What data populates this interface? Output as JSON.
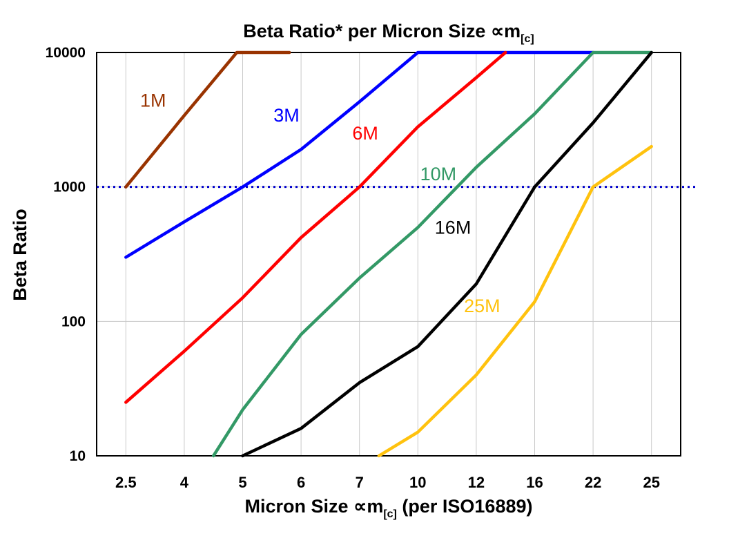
{
  "chart_data": {
    "type": "line",
    "title": {
      "text": "Beta Ratio* per Micron Size ∝m",
      "sub": "[c]"
    },
    "xlabel": {
      "text": "Micron Size ∝m",
      "sub": "[c]",
      "suffix": " (per ISO16889)"
    },
    "ylabel": "Beta Ratio",
    "categories": [
      2.5,
      4,
      5,
      6,
      7,
      10,
      12,
      16,
      22,
      25
    ],
    "x_tick_labels": [
      "2.5",
      "4",
      "5",
      "6",
      "7",
      "10",
      "12",
      "16",
      "22",
      "25"
    ],
    "y_ticks": [
      10,
      100,
      1000,
      10000
    ],
    "ylim": [
      10,
      10000
    ],
    "y_scale": "log",
    "grid": true,
    "grid_color": "#c9c9c9",
    "reference_line": {
      "value": 1000,
      "color": "#0000CC",
      "style": "dotted"
    },
    "series": [
      {
        "name": "1M",
        "color": "#993300",
        "points": [
          [
            2.5,
            1000
          ],
          [
            4,
            3400
          ],
          [
            4.9,
            10000
          ],
          [
            5.8,
            10000
          ]
        ],
        "label_at": [
          3.2,
          4400
        ]
      },
      {
        "name": "3M",
        "color": "#0000FF",
        "points": [
          [
            2.5,
            300
          ],
          [
            4,
            550
          ],
          [
            5,
            1000
          ],
          [
            6,
            1900
          ],
          [
            7,
            4300
          ],
          [
            10,
            10000
          ],
          [
            22,
            10000
          ]
        ],
        "label_at": [
          5.75,
          3400
        ]
      },
      {
        "name": "6M",
        "color": "#FF0000",
        "points": [
          [
            2.5,
            25
          ],
          [
            4,
            60
          ],
          [
            5,
            150
          ],
          [
            6,
            420
          ],
          [
            7,
            1000
          ],
          [
            10,
            2800
          ],
          [
            12,
            6500
          ],
          [
            14,
            10000
          ]
        ],
        "label_at": [
          7.3,
          2500
        ]
      },
      {
        "name": "10M",
        "color": "#339966",
        "points": [
          [
            4.5,
            10
          ],
          [
            5,
            22
          ],
          [
            6,
            80
          ],
          [
            7,
            210
          ],
          [
            10,
            500
          ],
          [
            12,
            1400
          ],
          [
            16,
            3500
          ],
          [
            22,
            10000
          ],
          [
            25,
            10000
          ]
        ],
        "label_at": [
          10.7,
          1250
        ]
      },
      {
        "name": "16M",
        "color": "#000000",
        "points": [
          [
            5,
            10
          ],
          [
            6,
            16
          ],
          [
            7,
            35
          ],
          [
            10,
            65
          ],
          [
            12,
            190
          ],
          [
            16,
            1000
          ],
          [
            22,
            3000
          ],
          [
            25,
            10000
          ]
        ],
        "label_at": [
          11.2,
          500
        ]
      },
      {
        "name": "25M",
        "color": "#FFC20E",
        "points": [
          [
            8,
            10
          ],
          [
            10,
            15
          ],
          [
            12,
            40
          ],
          [
            16,
            140
          ],
          [
            22,
            1000
          ],
          [
            25,
            2000
          ]
        ],
        "label_at": [
          12.4,
          130
        ]
      }
    ]
  }
}
